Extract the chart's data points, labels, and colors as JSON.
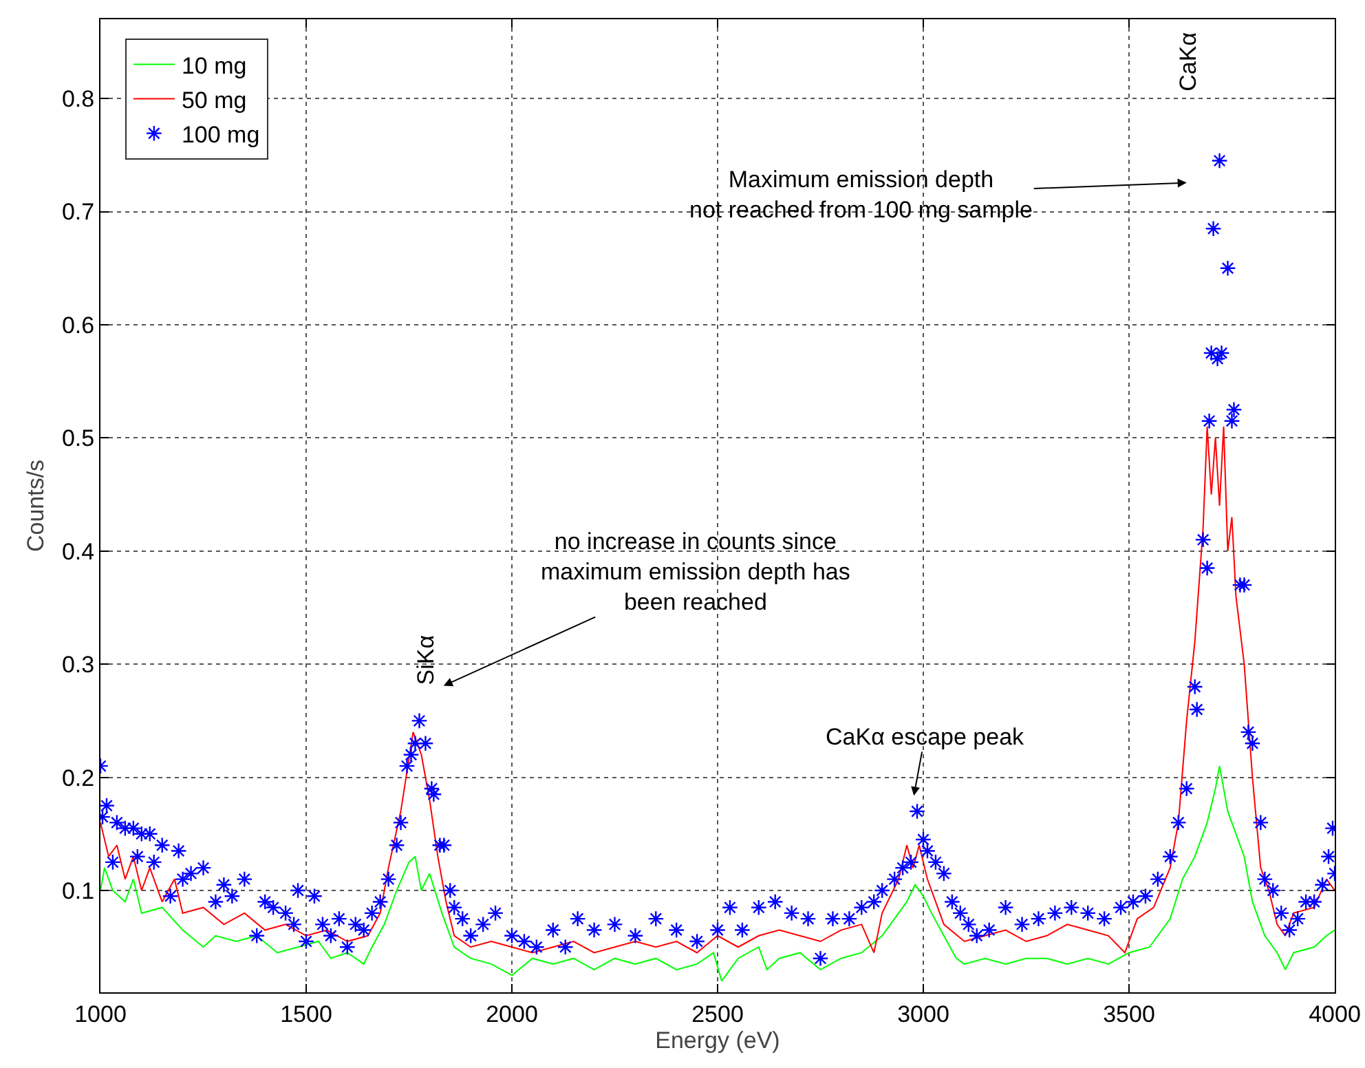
{
  "chart_data": {
    "type": "line",
    "xlabel": "Energy (eV)",
    "ylabel": "Counts/s",
    "xlim": [
      1000,
      4000
    ],
    "xticks": [
      1000,
      1500,
      2000,
      2500,
      3000,
      3500,
      4000
    ],
    "ylim": [
      0.01,
      0.87
    ],
    "yticks": [
      0.1,
      0.2,
      0.3,
      0.4,
      0.5,
      0.6,
      0.7,
      0.8
    ],
    "grid": true,
    "legend": "top left",
    "series": [
      {
        "name": "10 mg",
        "color": "#00ff00",
        "x": [
          1000,
          1010,
          1030,
          1060,
          1080,
          1100,
          1150,
          1200,
          1250,
          1280,
          1330,
          1380,
          1430,
          1480,
          1530,
          1560,
          1600,
          1640,
          1660,
          1690,
          1720,
          1750,
          1765,
          1780,
          1800,
          1830,
          1860,
          1900,
          1950,
          2000,
          2050,
          2100,
          2150,
          2200,
          2250,
          2300,
          2350,
          2400,
          2450,
          2490,
          2510,
          2550,
          2600,
          2620,
          2650,
          2700,
          2750,
          2800,
          2850,
          2900,
          2930,
          2960,
          2980,
          3000,
          3020,
          3050,
          3080,
          3100,
          3150,
          3200,
          3250,
          3300,
          3350,
          3400,
          3450,
          3500,
          3550,
          3600,
          3630,
          3660,
          3690,
          3710,
          3720,
          3740,
          3760,
          3780,
          3800,
          3830,
          3860,
          3880,
          3900,
          3950,
          3980,
          4000
        ],
        "values": [
          0.1,
          0.12,
          0.1,
          0.09,
          0.11,
          0.08,
          0.085,
          0.065,
          0.05,
          0.06,
          0.055,
          0.06,
          0.045,
          0.05,
          0.055,
          0.04,
          0.045,
          0.035,
          0.05,
          0.07,
          0.1,
          0.125,
          0.13,
          0.1,
          0.115,
          0.08,
          0.05,
          0.04,
          0.035,
          0.025,
          0.04,
          0.035,
          0.04,
          0.03,
          0.04,
          0.035,
          0.04,
          0.03,
          0.035,
          0.045,
          0.02,
          0.04,
          0.05,
          0.03,
          0.04,
          0.045,
          0.03,
          0.04,
          0.045,
          0.06,
          0.075,
          0.09,
          0.105,
          0.095,
          0.08,
          0.06,
          0.04,
          0.035,
          0.04,
          0.035,
          0.04,
          0.04,
          0.035,
          0.04,
          0.035,
          0.045,
          0.05,
          0.075,
          0.11,
          0.13,
          0.16,
          0.19,
          0.21,
          0.17,
          0.15,
          0.13,
          0.09,
          0.06,
          0.045,
          0.03,
          0.045,
          0.05,
          0.06,
          0.065
        ]
      },
      {
        "name": "50 mg",
        "color": "#ff0000",
        "x": [
          1000,
          1020,
          1040,
          1060,
          1080,
          1100,
          1120,
          1150,
          1180,
          1200,
          1250,
          1300,
          1350,
          1400,
          1450,
          1500,
          1550,
          1600,
          1650,
          1680,
          1700,
          1730,
          1760,
          1780,
          1800,
          1820,
          1840,
          1860,
          1900,
          1950,
          2000,
          2050,
          2100,
          2150,
          2200,
          2250,
          2300,
          2350,
          2400,
          2450,
          2500,
          2550,
          2600,
          2650,
          2700,
          2750,
          2800,
          2850,
          2880,
          2900,
          2940,
          2960,
          2975,
          2990,
          3010,
          3030,
          3050,
          3100,
          3150,
          3200,
          3250,
          3300,
          3350,
          3400,
          3450,
          3490,
          3520,
          3560,
          3600,
          3620,
          3640,
          3660,
          3680,
          3690,
          3700,
          3710,
          3720,
          3730,
          3740,
          3750,
          3760,
          3780,
          3800,
          3820,
          3840,
          3860,
          3880,
          3900,
          3950,
          3980,
          4000
        ],
        "values": [
          0.16,
          0.13,
          0.14,
          0.11,
          0.13,
          0.1,
          0.12,
          0.09,
          0.11,
          0.08,
          0.085,
          0.07,
          0.08,
          0.065,
          0.07,
          0.06,
          0.065,
          0.055,
          0.06,
          0.08,
          0.12,
          0.17,
          0.24,
          0.22,
          0.18,
          0.13,
          0.09,
          0.06,
          0.05,
          0.055,
          0.05,
          0.045,
          0.05,
          0.055,
          0.045,
          0.05,
          0.055,
          0.05,
          0.055,
          0.045,
          0.06,
          0.05,
          0.06,
          0.065,
          0.06,
          0.055,
          0.065,
          0.07,
          0.045,
          0.08,
          0.11,
          0.14,
          0.12,
          0.14,
          0.11,
          0.09,
          0.07,
          0.055,
          0.06,
          0.065,
          0.055,
          0.06,
          0.07,
          0.065,
          0.06,
          0.045,
          0.075,
          0.085,
          0.12,
          0.16,
          0.25,
          0.32,
          0.42,
          0.51,
          0.45,
          0.5,
          0.44,
          0.51,
          0.4,
          0.43,
          0.36,
          0.3,
          0.2,
          0.12,
          0.1,
          0.07,
          0.06,
          0.08,
          0.085,
          0.11,
          0.1
        ]
      },
      {
        "name": "100 mg",
        "type": "scatter",
        "marker": "cross",
        "color": "#0000ff",
        "x": [
          1000,
          1005,
          1015,
          1030,
          1040,
          1060,
          1080,
          1090,
          1100,
          1120,
          1130,
          1150,
          1170,
          1190,
          1200,
          1220,
          1250,
          1280,
          1300,
          1320,
          1350,
          1380,
          1400,
          1420,
          1450,
          1470,
          1480,
          1500,
          1520,
          1540,
          1560,
          1580,
          1600,
          1620,
          1640,
          1660,
          1680,
          1700,
          1720,
          1730,
          1745,
          1755,
          1765,
          1775,
          1790,
          1805,
          1810,
          1825,
          1835,
          1850,
          1860,
          1880,
          1900,
          1930,
          1960,
          2000,
          2030,
          2060,
          2100,
          2130,
          2160,
          2200,
          2250,
          2300,
          2350,
          2400,
          2450,
          2500,
          2530,
          2560,
          2600,
          2640,
          2680,
          2720,
          2750,
          2780,
          2820,
          2850,
          2880,
          2900,
          2930,
          2950,
          2970,
          2985,
          3000,
          3010,
          3030,
          3050,
          3070,
          3090,
          3110,
          3130,
          3160,
          3200,
          3240,
          3280,
          3320,
          3360,
          3400,
          3440,
          3480,
          3510,
          3540,
          3570,
          3600,
          3620,
          3640,
          3660,
          3665,
          3680,
          3690,
          3695,
          3700,
          3705,
          3715,
          3720,
          3725,
          3740,
          3750,
          3755,
          3770,
          3780,
          3790,
          3800,
          3820,
          3830,
          3850,
          3870,
          3890,
          3910,
          3930,
          3950,
          3970,
          3985,
          3995,
          4000
        ],
        "values": [
          0.21,
          0.165,
          0.175,
          0.125,
          0.16,
          0.155,
          0.155,
          0.13,
          0.15,
          0.15,
          0.125,
          0.14,
          0.095,
          0.135,
          0.11,
          0.115,
          0.12,
          0.09,
          0.105,
          0.095,
          0.11,
          0.06,
          0.09,
          0.085,
          0.08,
          0.07,
          0.1,
          0.055,
          0.095,
          0.07,
          0.06,
          0.075,
          0.05,
          0.07,
          0.065,
          0.08,
          0.09,
          0.11,
          0.14,
          0.16,
          0.21,
          0.22,
          0.23,
          0.25,
          0.23,
          0.19,
          0.185,
          0.14,
          0.14,
          0.1,
          0.085,
          0.075,
          0.06,
          0.07,
          0.08,
          0.06,
          0.055,
          0.05,
          0.065,
          0.05,
          0.075,
          0.065,
          0.07,
          0.06,
          0.075,
          0.065,
          0.055,
          0.065,
          0.085,
          0.065,
          0.085,
          0.09,
          0.08,
          0.075,
          0.04,
          0.075,
          0.075,
          0.085,
          0.09,
          0.1,
          0.11,
          0.12,
          0.125,
          0.17,
          0.145,
          0.135,
          0.125,
          0.115,
          0.09,
          0.08,
          0.07,
          0.06,
          0.065,
          0.085,
          0.07,
          0.075,
          0.08,
          0.085,
          0.08,
          0.075,
          0.085,
          0.09,
          0.095,
          0.11,
          0.13,
          0.16,
          0.19,
          0.28,
          0.26,
          0.41,
          0.385,
          0.515,
          0.575,
          0.685,
          0.57,
          0.745,
          0.575,
          0.65,
          0.515,
          0.525,
          0.37,
          0.37,
          0.24,
          0.23,
          0.16,
          0.11,
          0.1,
          0.08,
          0.065,
          0.075,
          0.09,
          0.09,
          0.105,
          0.13,
          0.155,
          0.115
        ]
      }
    ],
    "annotations": [
      "SiKα",
      "no increase in counts since\nmaximum emission depth has\nbeen reached",
      "CaKα escape peak",
      "CaKα",
      "Maximum emission depth\nnot reached from 100 mg sample"
    ]
  }
}
